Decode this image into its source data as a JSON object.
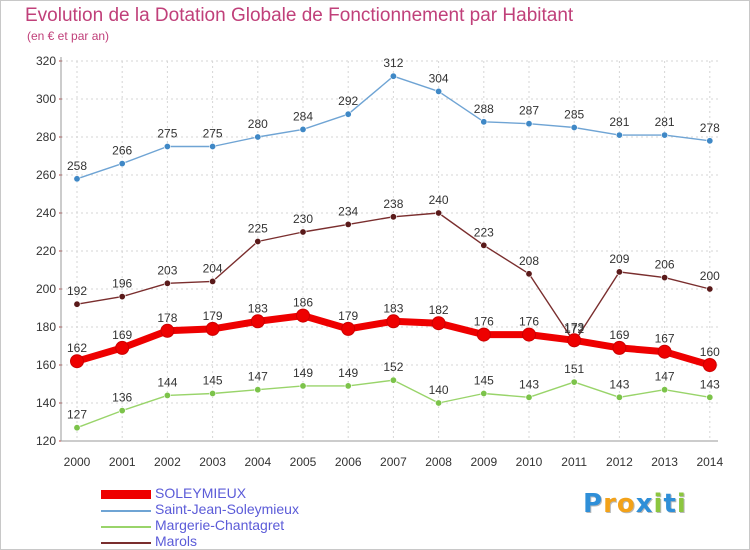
{
  "title": "Evolution de la Dotation Globale de Fonctionnement par Habitant",
  "subtitle": "(en € et par an)",
  "logo": {
    "text": "Proxiti",
    "letters": [
      {
        "ch": "P",
        "color": "#2f8fd8"
      },
      {
        "ch": "r",
        "color": "#f3a219"
      },
      {
        "ch": "o",
        "color": "#f3a219"
      },
      {
        "ch": "x",
        "color": "#2f8fd8"
      },
      {
        "ch": "i",
        "color": "#8cc63f"
      },
      {
        "ch": "t",
        "color": "#2f8fd8"
      },
      {
        "ch": "i",
        "color": "#8cc63f"
      }
    ]
  },
  "chart_data": {
    "type": "line",
    "x": [
      "2000",
      "2001",
      "2002",
      "2003",
      "2004",
      "2005",
      "2006",
      "2007",
      "2008",
      "2009",
      "2010",
      "2011",
      "2012",
      "2013",
      "2014"
    ],
    "ylim": [
      120,
      320
    ],
    "yticks": [
      "120",
      "140",
      "160",
      "180",
      "200",
      "220",
      "240",
      "260",
      "280",
      "300",
      "320"
    ],
    "grid": true,
    "legend_position": "bottom-left",
    "series": [
      {
        "name": "Saint-Jean-Soleymieux",
        "color": "#6fa4d4",
        "marker": "#3f88c6",
        "values": [
          258,
          266,
          275,
          275,
          280,
          284,
          292,
          312,
          304,
          288,
          287,
          285,
          281,
          281,
          278
        ]
      },
      {
        "name": "Marols",
        "color": "#7a2e2e",
        "marker": "#5a1a1a",
        "values": [
          192,
          196,
          203,
          204,
          225,
          230,
          234,
          238,
          240,
          223,
          208,
          172,
          209,
          206,
          200
        ]
      },
      {
        "name": "Margerie-Chantagret",
        "color": "#99d46a",
        "marker": "#7cc34a",
        "values": [
          127,
          136,
          144,
          145,
          147,
          149,
          149,
          152,
          140,
          145,
          143,
          151,
          143,
          147,
          143
        ]
      },
      {
        "name": "SOLEYMIEUX",
        "color": "#ee0000",
        "marker": "#ee0000",
        "values": [
          162,
          169,
          178,
          179,
          183,
          186,
          179,
          183,
          182,
          176,
          176,
          173,
          169,
          167,
          160
        ]
      }
    ]
  }
}
